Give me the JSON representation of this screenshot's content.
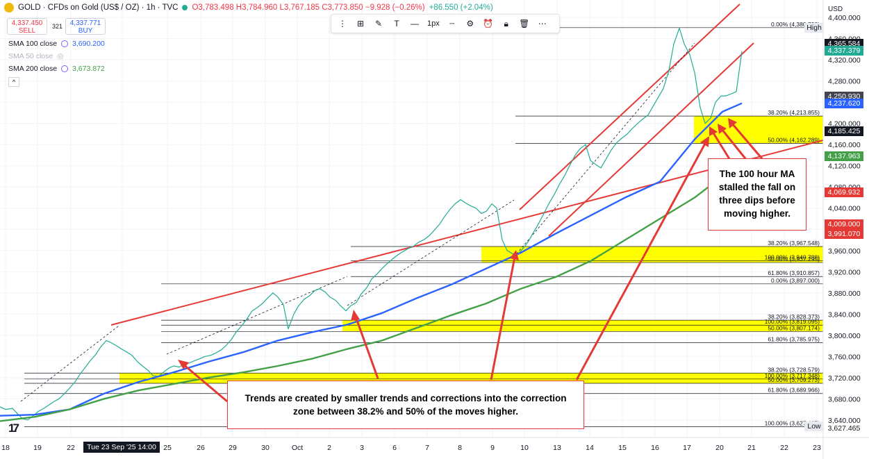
{
  "header": {
    "symbol": "GOLD · CFDs on Gold (US$ / OZ) · 1h · TVC",
    "open": "O3,783.498",
    "high": "H3,784.960",
    "low": "L3,767.185",
    "close": "C3,773.850",
    "change": "−9.928 (−0.26%)",
    "extra": "+86.550 (+2.04%)",
    "sell_price": "4,337.450",
    "sell_label": "SELL",
    "spread": "321",
    "buy_price": "4,337.771",
    "buy_label": "BUY",
    "indicators": [
      {
        "name": "SMA 100 close",
        "value": "3,690.200",
        "color": "#2962ff"
      },
      {
        "name": "SMA 50 close",
        "value": "",
        "color": "#b2b5be"
      },
      {
        "name": "SMA 200 close",
        "value": "3,673.872",
        "color": "#43a047"
      }
    ],
    "toolbar_width_label": "1px",
    "currency": "USD"
  },
  "chart_data": {
    "type": "line",
    "instrument": "GOLD",
    "timeframe": "1h",
    "y_ticks": [
      3640,
      3680,
      3720,
      3760,
      3800,
      3840,
      3880,
      3920,
      3960,
      4000,
      4040,
      4080,
      4120,
      4160,
      4200,
      4240,
      4280,
      4320,
      4360,
      4400
    ],
    "ylim": [
      3607,
      4433
    ],
    "x_ticks": [
      "18",
      "19",
      "22",
      "Tue 23 Sep '25  14:00",
      "25",
      "26",
      "29",
      "30",
      "Oct",
      "2",
      "3",
      "6",
      "7",
      "8",
      "9",
      "10",
      "13",
      "14",
      "15",
      "16",
      "17",
      "20",
      "21",
      "22",
      "23"
    ],
    "series": [
      {
        "name": "",
        "color": "#22ab94",
        "x": [
          0,
          8,
          18,
          25,
          33,
          40,
          48,
          55,
          63,
          70,
          78,
          85,
          93,
          100,
          108,
          115,
          123,
          130,
          138,
          145,
          153,
          160,
          168,
          175,
          183,
          190,
          198,
          205,
          213,
          220,
          228,
          235,
          243,
          250,
          258,
          265,
          273,
          280,
          288,
          295,
          303,
          310,
          318,
          325,
          333,
          340,
          348,
          355,
          363,
          370,
          378,
          385,
          393,
          400,
          408,
          415,
          423,
          430,
          438,
          445,
          453,
          460,
          468,
          475,
          483,
          490,
          498,
          505,
          513,
          520,
          528,
          535,
          543,
          550,
          558,
          565,
          573,
          580,
          588,
          595,
          603,
          610,
          618,
          625,
          633,
          640,
          648,
          655,
          663,
          670,
          678,
          685,
          693,
          700,
          708,
          715,
          723,
          730,
          738,
          745,
          753,
          760,
          768,
          775,
          783,
          790,
          798,
          805,
          813,
          820,
          828,
          835,
          843,
          850,
          858,
          865,
          873,
          880,
          888,
          895,
          903,
          910,
          918,
          925,
          933,
          940,
          948,
          955,
          963,
          970,
          978,
          985,
          993,
          1000,
          1008,
          1015,
          1023,
          1030,
          1038,
          1045,
          1053,
          1060,
          1068
        ],
        "y": [
          3665,
          3660,
          3662,
          3652,
          3642,
          3640,
          3648,
          3656,
          3662,
          3668,
          3675,
          3680,
          3690,
          3700,
          3712,
          3726,
          3740,
          3752,
          3764,
          3778,
          3790,
          3786,
          3780,
          3774,
          3768,
          3762,
          3750,
          3742,
          3734,
          3724,
          3722,
          3730,
          3738,
          3742,
          3740,
          3745,
          3748,
          3752,
          3756,
          3760,
          3762,
          3766,
          3772,
          3780,
          3792,
          3806,
          3818,
          3830,
          3846,
          3852,
          3860,
          3870,
          3880,
          3872,
          3858,
          3812,
          3840,
          3856,
          3868,
          3874,
          3884,
          3888,
          3882,
          3872,
          3866,
          3856,
          3846,
          3856,
          3862,
          3878,
          3890,
          3906,
          3916,
          3926,
          3936,
          3944,
          3952,
          3958,
          3964,
          3968,
          3976,
          3980,
          3988,
          3998,
          4010,
          4024,
          4038,
          4048,
          4056,
          4050,
          4044,
          4040,
          4030,
          4034,
          4048,
          4040,
          3980,
          3960,
          3954,
          3952,
          3964,
          3976,
          3994,
          4010,
          4030,
          4048,
          4066,
          4084,
          4102,
          4120,
          4140,
          4152,
          4160,
          4130,
          4122,
          4116,
          4134,
          4150,
          4164,
          4172,
          4180,
          4190,
          4200,
          4208,
          4216,
          4232,
          4250,
          4266,
          4300,
          4350,
          4380,
          4350,
          4330,
          4296,
          4230,
          4200,
          4210,
          4240,
          4252,
          4252,
          4256,
          4260,
          4336
        ]
      },
      {
        "name": "SMA 100 close",
        "color": "#2962ff",
        "x": [
          0,
          50,
          100,
          150,
          200,
          250,
          300,
          350,
          400,
          450,
          500,
          550,
          600,
          650,
          700,
          750,
          800,
          850,
          900,
          950,
          1000,
          1040,
          1068
        ],
        "y": [
          3648,
          3650,
          3660,
          3690,
          3712,
          3730,
          3750,
          3768,
          3790,
          3806,
          3820,
          3842,
          3870,
          3896,
          3926,
          3956,
          3992,
          4026,
          4060,
          4090,
          4170,
          4222,
          4238
        ]
      },
      {
        "name": "SMA 200 close",
        "color": "#43a047",
        "x": [
          0,
          50,
          100,
          150,
          200,
          250,
          300,
          350,
          400,
          450,
          500,
          550,
          600,
          650,
          700,
          750,
          800,
          850,
          900,
          950,
          1000,
          1040,
          1068
        ],
        "y": [
          3638,
          3646,
          3660,
          3680,
          3696,
          3708,
          3720,
          3730,
          3742,
          3756,
          3774,
          3790,
          3814,
          3838,
          3860,
          3888,
          3910,
          3940,
          3980,
          4020,
          4060,
          4100,
          4120
        ]
      }
    ],
    "fib_levels": [
      {
        "label": "0.00% (4,380.790)",
        "value": 4380.79
      },
      {
        "label": "38.20% (4,213.855)",
        "value": 4213.855
      },
      {
        "label": "50.00% (4,162.289)",
        "value": 4162.289
      },
      {
        "label": "38.20% (3,967.548)",
        "value": 3967.548
      },
      {
        "label": "100.00% (3,940.788)",
        "value": 3940.788
      },
      {
        "label": "50.00% (3,937.295)",
        "value": 3937.295
      },
      {
        "label": "61.80% (3,910.857)",
        "value": 3910.857
      },
      {
        "label": "0.00% (3,897.000)",
        "value": 3897.0
      },
      {
        "label": "38.20% (3,828.373)",
        "value": 3828.373
      },
      {
        "label": "100.00% (3,819.095)",
        "value": 3819.095
      },
      {
        "label": "50.00% (3,807.174)",
        "value": 3807.174
      },
      {
        "label": "61.80% (3,785.975)",
        "value": 3785.975
      },
      {
        "label": "38.20% (3,728.579)",
        "value": 3728.579
      },
      {
        "label": "100.00% (3,717.348)",
        "value": 3717.348
      },
      {
        "label": "50.00% (3,709.273)",
        "value": 3709.273
      },
      {
        "label": "61.80% (3,689.966)",
        "value": 3689.966
      },
      {
        "label": "100.00% (3,627.465)",
        "value": 3627.465
      }
    ],
    "correction_zones": [
      {
        "x0": 999,
        "x1": 1185,
        "y0": 4213.855,
        "y1": 4162.289
      },
      {
        "x0": 693,
        "x1": 1185,
        "y0": 3967.548,
        "y1": 3937.295
      },
      {
        "x0": 493,
        "x1": 1185,
        "y0": 3828.373,
        "y1": 3807.174
      },
      {
        "x0": 172,
        "x1": 1185,
        "y0": 3728.579,
        "y1": 3709.273
      }
    ],
    "price_labels": [
      {
        "text": "High",
        "value": 4380.79,
        "bg": "#e8eaf0",
        "fg": "#131722"
      },
      {
        "text": "4,365.584",
        "value": 4365.584,
        "bg": "#131722",
        "fg": "#ffffff"
      },
      {
        "text": "4,337.379",
        "value": 4337.379,
        "bg": "#22ab94",
        "fg": "#ffffff"
      },
      {
        "text": "4,250.930",
        "value": 4250.93,
        "bg": "#434651",
        "fg": "#ffffff"
      },
      {
        "text": "4,237.620",
        "value": 4237.62,
        "bg": "#2962ff",
        "fg": "#ffffff"
      },
      {
        "text": "4,185.425",
        "value": 4185.425,
        "bg": "#131722",
        "fg": "#ffffff"
      },
      {
        "text": "4,137.963",
        "value": 4137.963,
        "bg": "#43a047",
        "fg": "#ffffff"
      },
      {
        "text": "4,069.932",
        "value": 4069.932,
        "bg": "#e53935",
        "fg": "#ffffff"
      },
      {
        "text": "4,009.000",
        "value": 4009.0,
        "bg": "#e53935",
        "fg": "#ffffff"
      },
      {
        "text": "3,991.070",
        "value": 3991.07,
        "bg": "#e53935",
        "fg": "#ffffff"
      },
      {
        "text": "Low",
        "value": 3627.465,
        "bg": "#e8eaf0",
        "fg": "#131722"
      },
      {
        "text": "3,627.465",
        "value": 3627.465,
        "bg": "#ffffff",
        "fg": "#131722"
      }
    ],
    "callouts": [
      {
        "text": "The 100 hour MA stalled the fall on three dips before moving higher."
      },
      {
        "text": "Trends are created by smaller trends and corrections into the correction zone between 38.2% and 50% of the moves higher."
      }
    ],
    "grid": true
  }
}
